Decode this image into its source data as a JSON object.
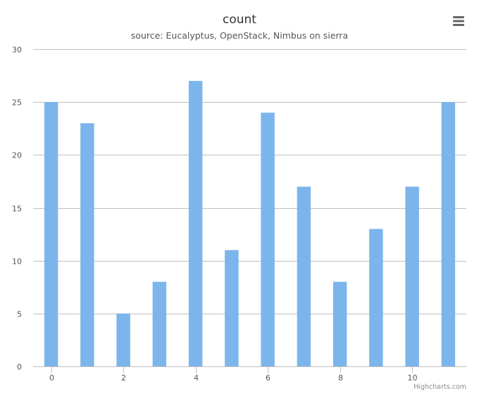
{
  "chart_data": {
    "type": "bar",
    "title": "count",
    "subtitle": "source: Eucalyptus, OpenStack, Nimbus on sierra",
    "x": [
      0,
      1,
      2,
      3,
      4,
      5,
      6,
      7,
      8,
      9,
      10,
      11
    ],
    "values": [
      25,
      23,
      5,
      8,
      27,
      11,
      24,
      17,
      8,
      13,
      17,
      25
    ],
    "xlim": [
      -0.5,
      11.5
    ],
    "x_ticks": [
      0,
      2,
      4,
      6,
      8,
      10
    ],
    "ylim": [
      0,
      30
    ],
    "y_ticks": [
      0,
      5,
      10,
      15,
      20,
      25,
      30
    ],
    "grid": true,
    "legend": "none",
    "bar_color": "#7cb5ec",
    "grid_color": "#c0c0c0"
  },
  "credits": {
    "text": "Highcharts.com"
  },
  "menu": {
    "icon": "hamburger-menu-icon"
  }
}
